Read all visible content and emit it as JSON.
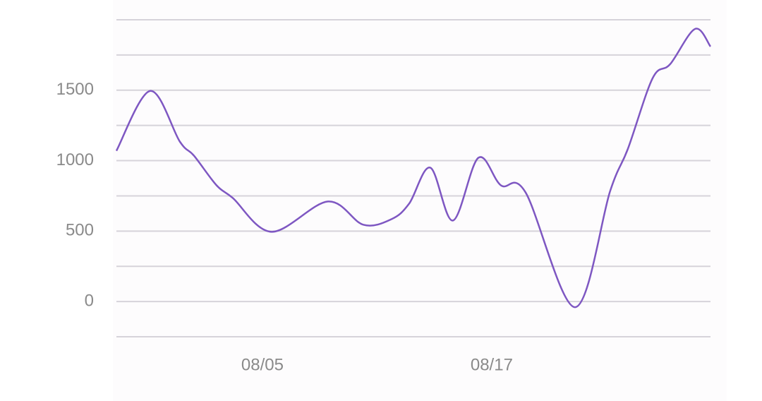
{
  "chart_data": {
    "type": "line",
    "x": [
      -2.64,
      -0.87,
      0.68,
      1.42,
      2.6,
      3.45,
      5.48,
      8.43,
      10.28,
      11.76,
      12.68,
      13.79,
      14.97,
      16.3,
      17.48,
      18.77,
      21.36,
      23.2,
      24.13,
      25.42,
      26.34,
      27.64,
      28.45
    ],
    "series": [
      {
        "color": "#7e57c2",
        "values": [
          1070,
          1495,
          1135,
          1035,
          825,
          735,
          495,
          710,
          545,
          585,
          695,
          950,
          575,
          1020,
          825,
          775,
          -40,
          785,
          1085,
          1585,
          1685,
          1935,
          1810
        ]
      }
    ],
    "xlim": [
      -2.64,
      28.45
    ],
    "xticks": [
      {
        "value": 5,
        "label": "08/05"
      },
      {
        "value": 17,
        "label": "08/17"
      }
    ],
    "ylim": [
      -250,
      2000
    ],
    "yticks": [
      {
        "value": -250,
        "label": null
      },
      0,
      {
        "value": 250,
        "label": null
      },
      500,
      {
        "value": 750,
        "label": null
      },
      1000,
      {
        "value": 1250,
        "label": null
      },
      1500,
      {
        "value": 1750,
        "label": null
      },
      {
        "value": 2000,
        "label": null
      }
    ],
    "grid": true
  }
}
